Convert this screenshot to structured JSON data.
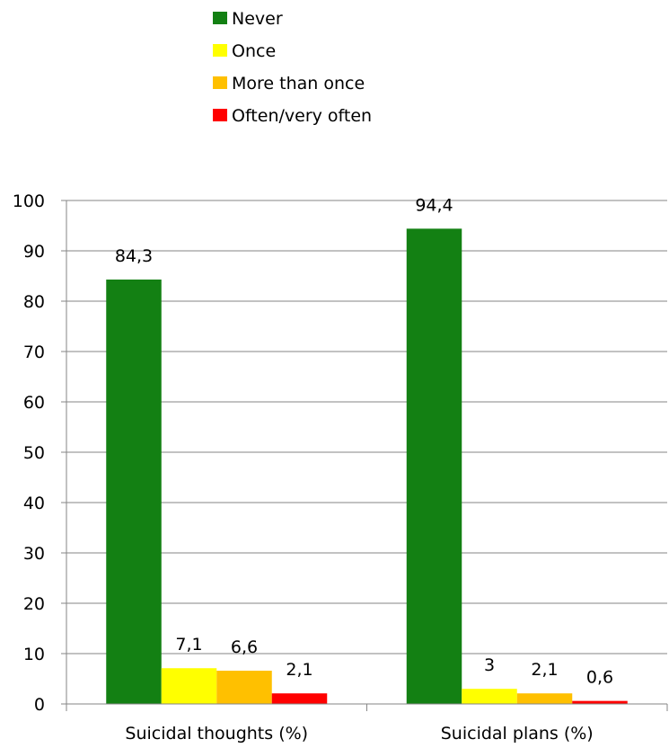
{
  "chart_data": {
    "type": "bar",
    "categories": [
      "Suicidal thoughts (%)",
      "Suicidal plans (%)"
    ],
    "series": [
      {
        "name": "Never",
        "color": "#138013",
        "values": [
          84.3,
          94.4
        ],
        "labels": [
          "84,3",
          "94,4"
        ]
      },
      {
        "name": "Once",
        "color": "#FFFF00",
        "values": [
          7.1,
          3
        ],
        "labels": [
          "7,1",
          "3"
        ]
      },
      {
        "name": "More than once",
        "color": "#FFC000",
        "values": [
          6.6,
          2.1
        ],
        "labels": [
          "6,6",
          "2,1"
        ]
      },
      {
        "name": "Often/very often",
        "color": "#FF0000",
        "values": [
          2.1,
          0.6
        ],
        "labels": [
          "2,1",
          "0,6"
        ]
      }
    ],
    "yticks": [
      "0",
      "10",
      "20",
      "30",
      "40",
      "50",
      "60",
      "70",
      "80",
      "90",
      "100"
    ],
    "ylim": [
      0,
      100
    ],
    "grid": true,
    "legend": "top"
  }
}
